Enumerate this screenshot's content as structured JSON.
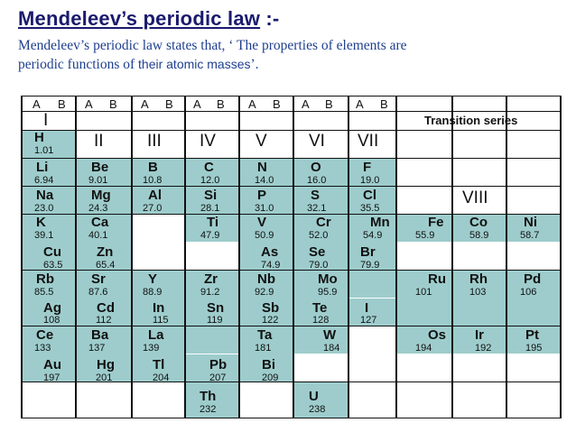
{
  "slide": {
    "title": "Mendeleev’s periodic law",
    "title_suffix": ":-",
    "desc_line1": "Mendeleev’s periodic law states that, ‘ The properties of elements are",
    "desc_line2a": "periodic functions of ",
    "desc_line2b": "their atomic masses",
    "desc_line2c": "’."
  },
  "table": {
    "subgroup_labels": [
      "A",
      "B"
    ],
    "group1_label": "I",
    "transition_label": "Transition series",
    "group_labels": [
      "II",
      "III",
      "IV",
      "V",
      "VI",
      "VII"
    ],
    "group8_label": "VIII",
    "elements": [
      {
        "symbol": "H",
        "mass": "1.01"
      },
      {
        "symbol": "Li",
        "mass": "6.94"
      },
      {
        "symbol": "Be",
        "mass": "9.01"
      },
      {
        "symbol": "B",
        "mass": "10.8"
      },
      {
        "symbol": "C",
        "mass": "12.0"
      },
      {
        "symbol": "N",
        "mass": "14.0"
      },
      {
        "symbol": "O",
        "mass": "16.0"
      },
      {
        "symbol": "F",
        "mass": "19.0"
      },
      {
        "symbol": "Na",
        "mass": "23.0"
      },
      {
        "symbol": "Mg",
        "mass": "24.3"
      },
      {
        "symbol": "Al",
        "mass": "27.0"
      },
      {
        "symbol": "Si",
        "mass": "28.1"
      },
      {
        "symbol": "P",
        "mass": "31.0"
      },
      {
        "symbol": "S",
        "mass": "32.1"
      },
      {
        "symbol": "Cl",
        "mass": "35.5"
      },
      {
        "symbol": "K",
        "mass": "39.1"
      },
      {
        "symbol": "Ca",
        "mass": "40.1"
      },
      {
        "symbol": "Ti",
        "mass": "47.9"
      },
      {
        "symbol": "V",
        "mass": "50.9"
      },
      {
        "symbol": "Cr",
        "mass": "52.0"
      },
      {
        "symbol": "Mn",
        "mass": "54.9"
      },
      {
        "symbol": "Fe",
        "mass": "55.9"
      },
      {
        "symbol": "Co",
        "mass": "58.9"
      },
      {
        "symbol": "Ni",
        "mass": "58.7"
      },
      {
        "symbol": "Cu",
        "mass": "63.5"
      },
      {
        "symbol": "Zn",
        "mass": "65.4"
      },
      {
        "symbol": "As",
        "mass": "74.9"
      },
      {
        "symbol": "Se",
        "mass": "79.0"
      },
      {
        "symbol": "Br",
        "mass": "79.9"
      },
      {
        "symbol": "Rb",
        "mass": "85.5"
      },
      {
        "symbol": "Sr",
        "mass": "87.6"
      },
      {
        "symbol": "Y",
        "mass": "88.9"
      },
      {
        "symbol": "Zr",
        "mass": "91.2"
      },
      {
        "symbol": "Nb",
        "mass": "92.9"
      },
      {
        "symbol": "Mo",
        "mass": "95.9"
      },
      {
        "symbol": "Ru",
        "mass": "101"
      },
      {
        "symbol": "Rh",
        "mass": "103"
      },
      {
        "symbol": "Pd",
        "mass": "106"
      },
      {
        "symbol": "Ag",
        "mass": "108"
      },
      {
        "symbol": "Cd",
        "mass": "112"
      },
      {
        "symbol": "In",
        "mass": "115"
      },
      {
        "symbol": "Sn",
        "mass": "119"
      },
      {
        "symbol": "Sb",
        "mass": "122"
      },
      {
        "symbol": "Te",
        "mass": "128"
      },
      {
        "symbol": "I",
        "mass": "127"
      },
      {
        "symbol": "Ce",
        "mass": "133"
      },
      {
        "symbol": "Ba",
        "mass": "137"
      },
      {
        "symbol": "La",
        "mass": "139"
      },
      {
        "symbol": "Ta",
        "mass": "181"
      },
      {
        "symbol": "W",
        "mass": "184"
      },
      {
        "symbol": "Os",
        "mass": "194"
      },
      {
        "symbol": "Ir",
        "mass": "192"
      },
      {
        "symbol": "Pt",
        "mass": "195"
      },
      {
        "symbol": "Au",
        "mass": "197"
      },
      {
        "symbol": "Hg",
        "mass": "201"
      },
      {
        "symbol": "Tl",
        "mass": "204"
      },
      {
        "symbol": "Pb",
        "mass": "207"
      },
      {
        "symbol": "Bi",
        "mass": "209"
      },
      {
        "symbol": "Th",
        "mass": "232"
      },
      {
        "symbol": "U",
        "mass": "238"
      }
    ]
  }
}
